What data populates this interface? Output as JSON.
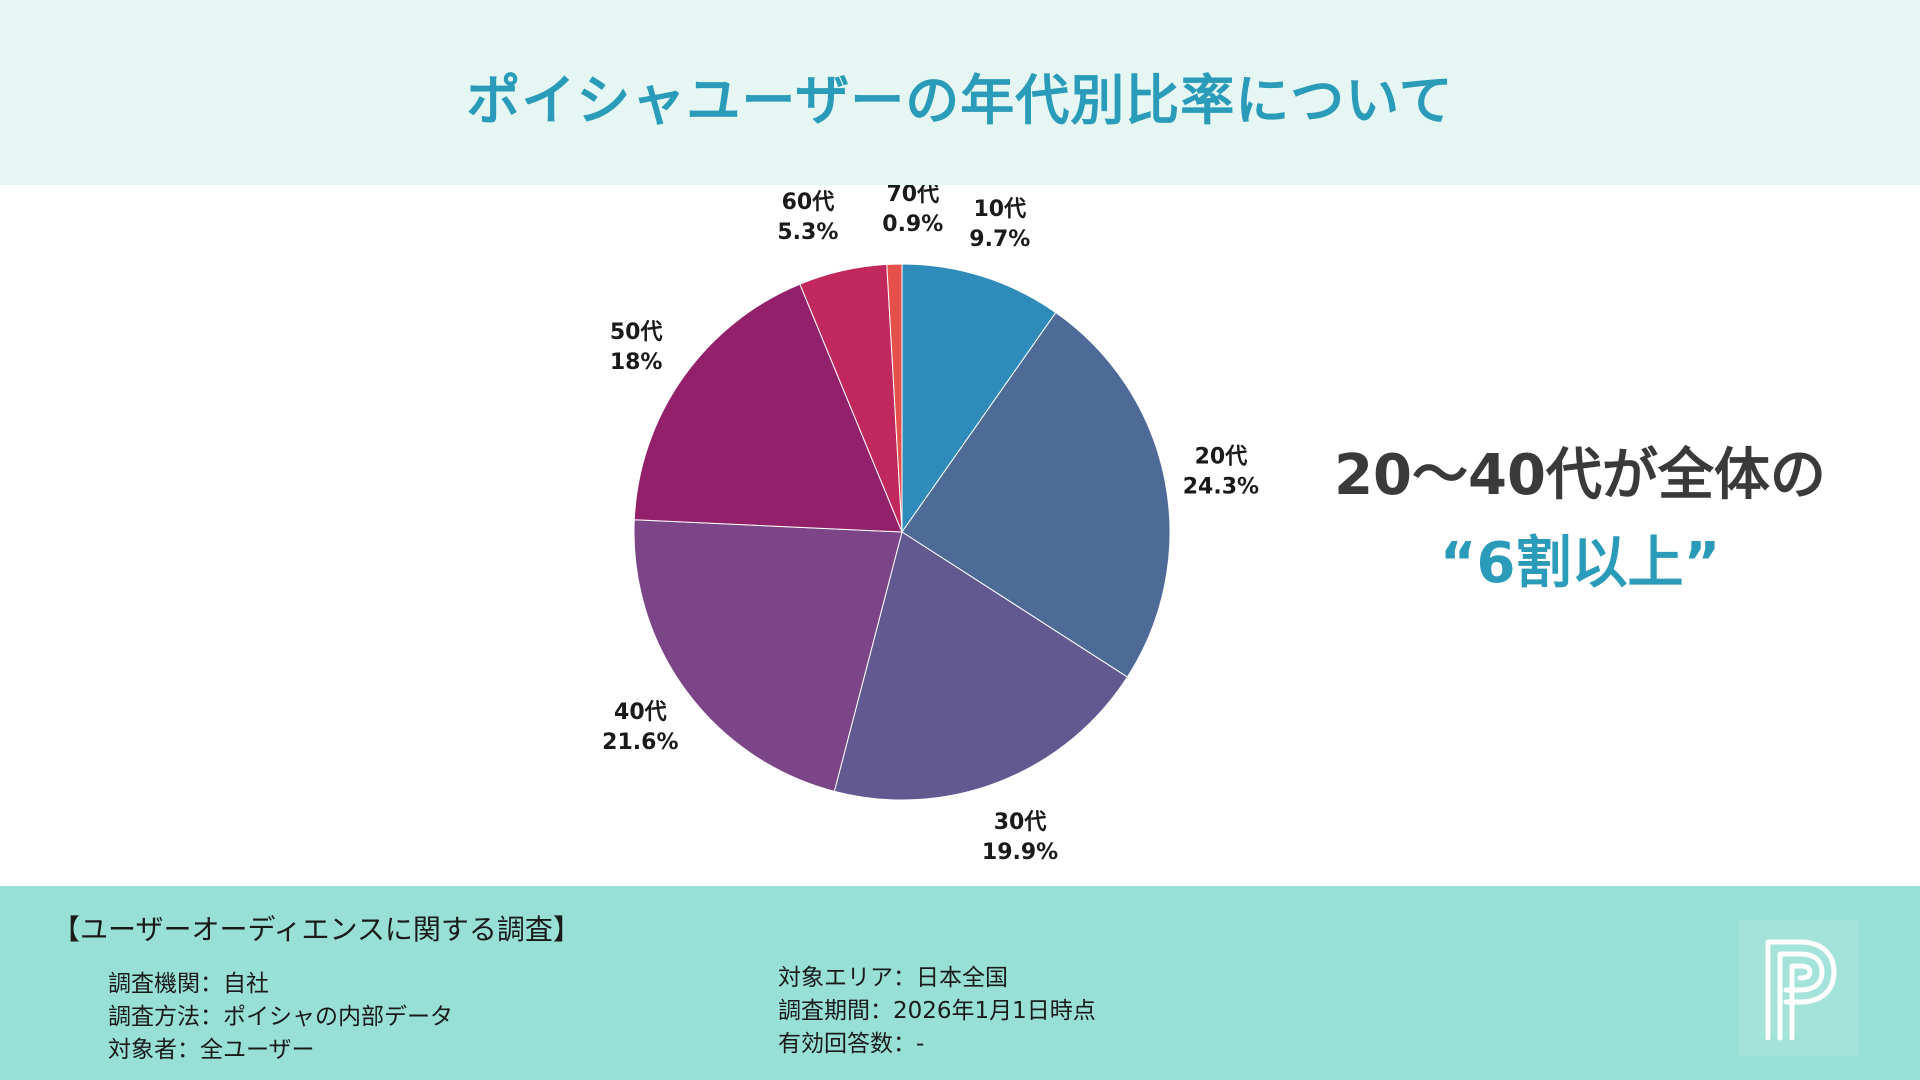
{
  "header": {
    "title": "ポイシャユーザーの年代別比率について"
  },
  "chart_data": {
    "type": "pie",
    "categories": [
      "10代",
      "20代",
      "30代",
      "40代",
      "50代",
      "60代",
      "70代"
    ],
    "values": [
      9.7,
      24.3,
      19.9,
      21.6,
      18,
      5.3,
      0.9
    ],
    "value_labels": [
      "9.7%",
      "24.3%",
      "19.9%",
      "21.6%",
      "18%",
      "5.3%",
      "0.9%"
    ],
    "colors": [
      "#2e8bba",
      "#4e6b98",
      "#625990",
      "#7b4587",
      "#93206a",
      "#c0285e",
      "#e6504a"
    ],
    "start_angle_deg": 0,
    "direction": "clockwise",
    "legend": "none"
  },
  "headline": {
    "line1": "20〜40代が全体の",
    "line2": "“6割以上”"
  },
  "footer": {
    "survey_title": "【ユーザーオーディエンスに関する調査】",
    "left_items": [
      "調査機関：自社",
      "調査方法：ポイシャの内部データ",
      "対象者：全ユーザー"
    ],
    "right_items": [
      "対象エリア：日本全国",
      "調査期間：2026年1月1日時点",
      "有効回答数：-"
    ]
  },
  "logo": {
    "icon": "poisha-p-logo-icon",
    "color": "#ffffff"
  }
}
